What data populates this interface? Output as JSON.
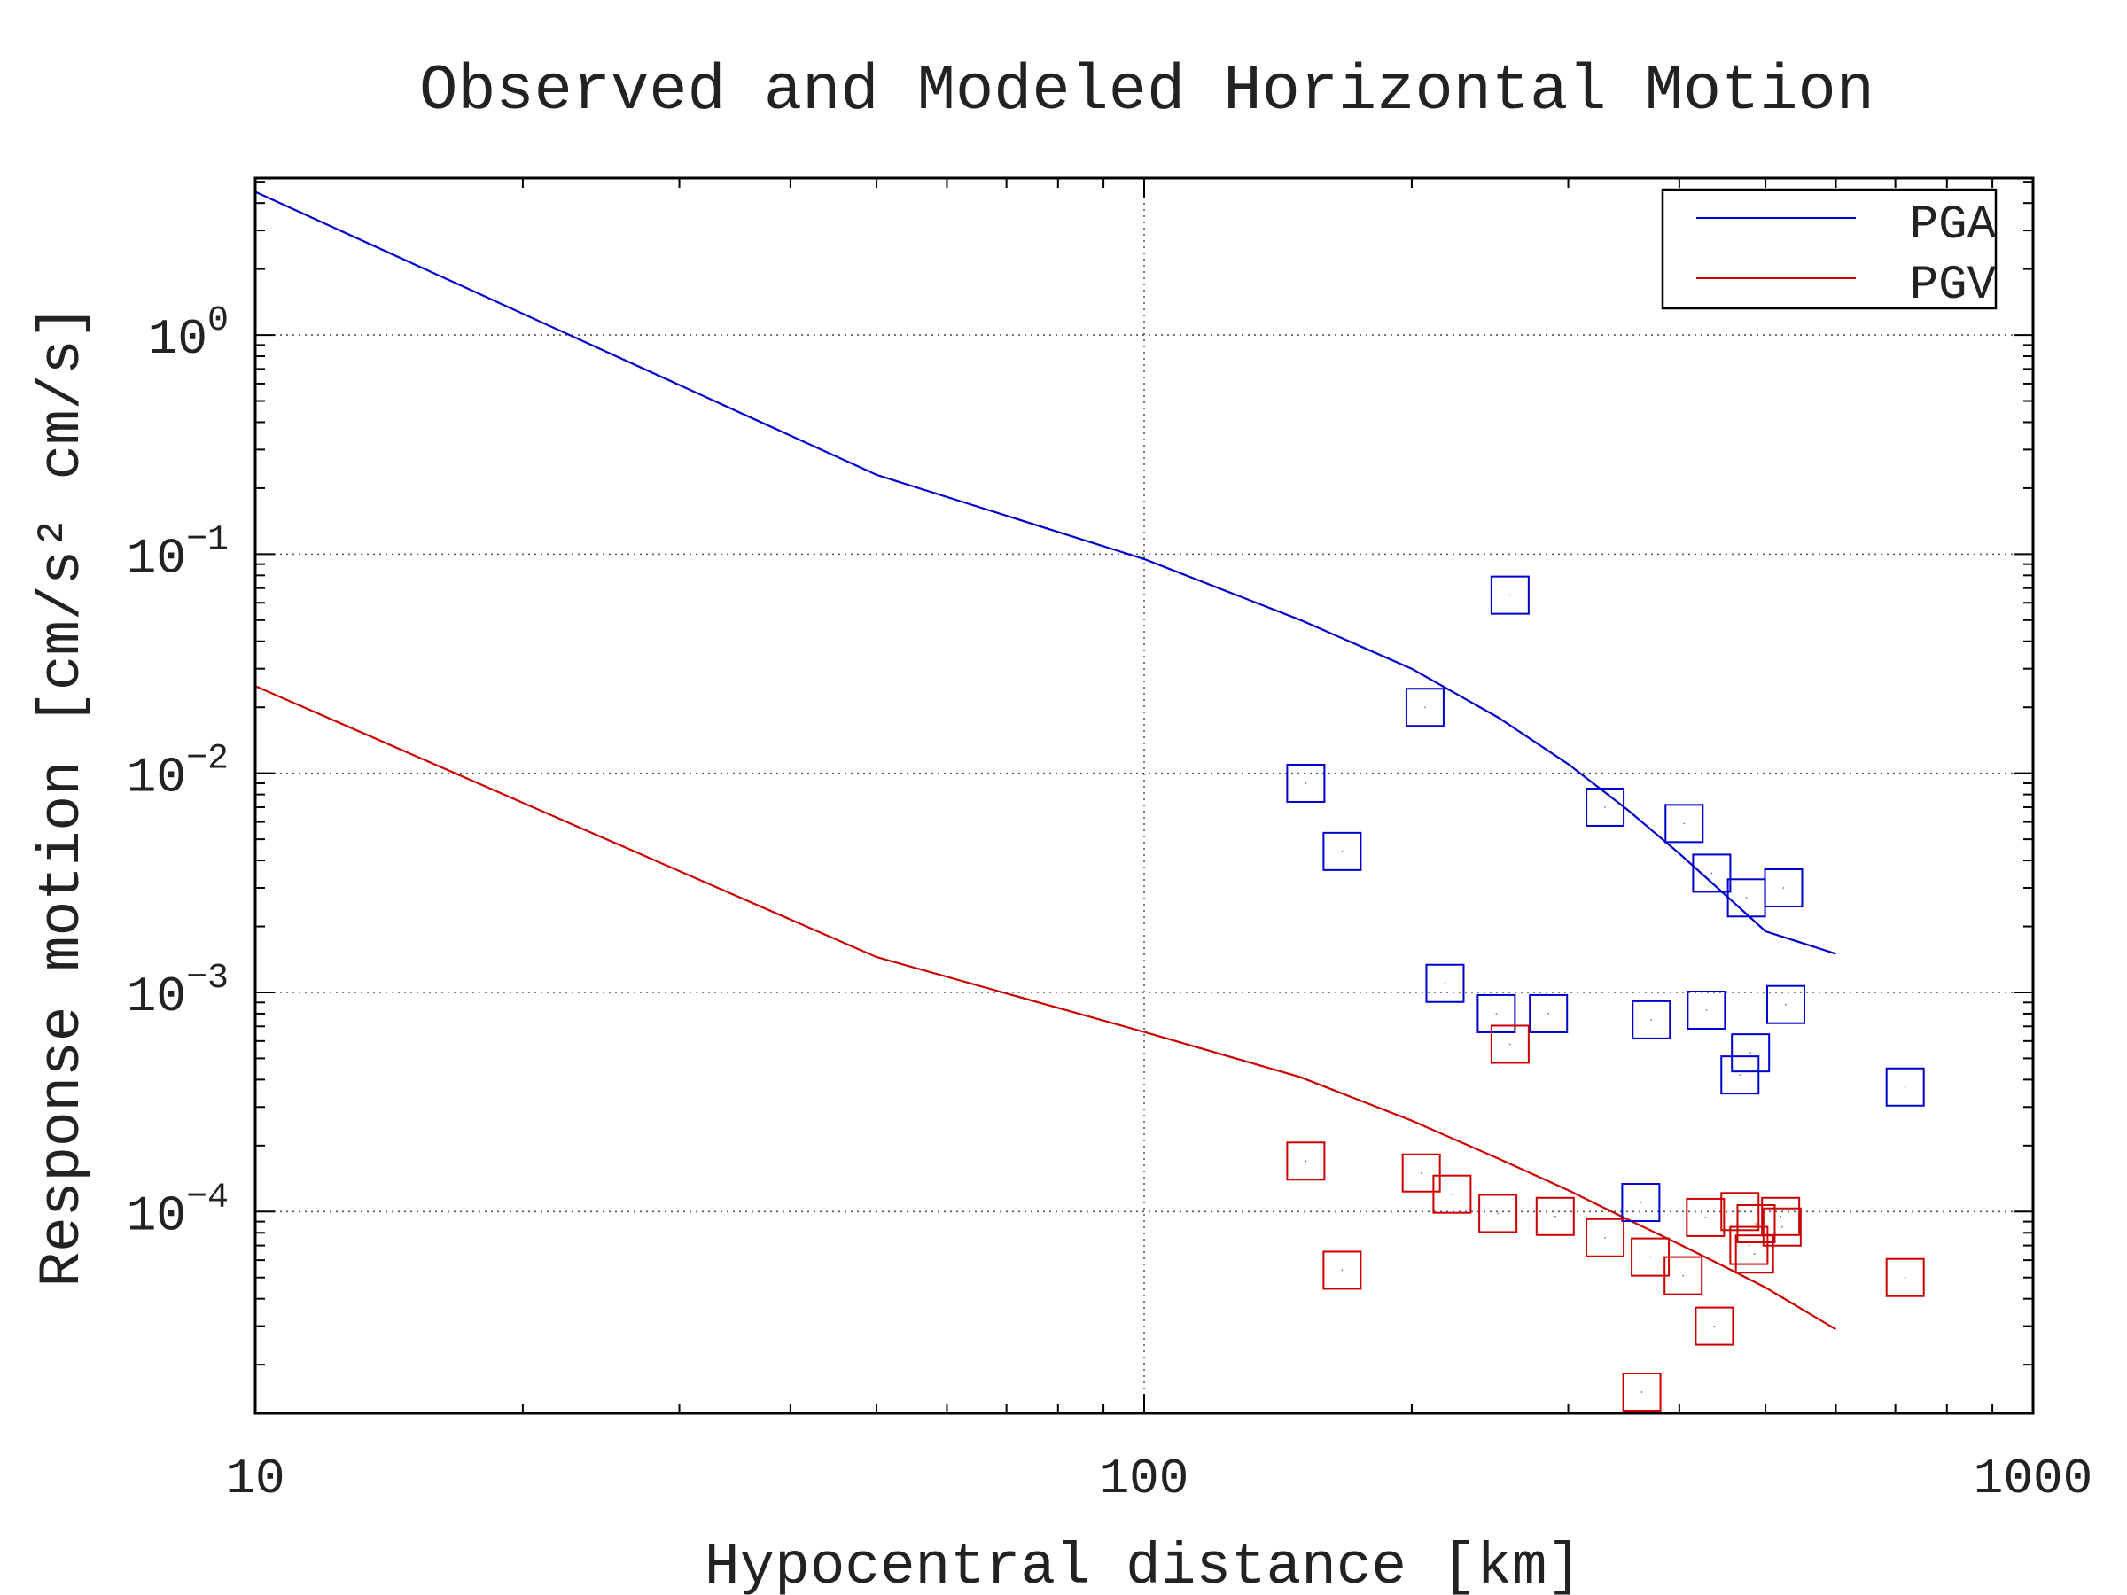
{
  "chart_data": {
    "type": "scatter",
    "title": "Observed and Modeled Horizontal Motion",
    "xlabel": "Hypocentral distance [km]",
    "ylabel": "Response motion [cm/s² cm/s]",
    "xscale": "log",
    "yscale": "log",
    "xlim": [
      10,
      1000
    ],
    "ylim": [
      1.2e-05,
      5.2
    ],
    "grid": true,
    "legend_position": "top-right",
    "x_tick_labels": [
      "10",
      "100",
      "1000"
    ],
    "y_tick_exponents": [
      "0",
      "−1",
      "−2",
      "−3",
      "−4"
    ],
    "series": [
      {
        "name": "PGA",
        "color": "#0000cc",
        "line": [
          [
            10,
            4.5
          ],
          [
            50,
            0.23
          ],
          [
            100,
            0.095
          ],
          [
            150,
            0.05
          ],
          [
            200,
            0.03
          ],
          [
            250,
            0.018
          ],
          [
            300,
            0.011
          ],
          [
            350,
            0.0068
          ],
          [
            400,
            0.0043
          ],
          [
            450,
            0.0028
          ],
          [
            500,
            0.0019
          ],
          [
            600,
            0.0015
          ]
        ],
        "points": [
          [
            258,
            0.065
          ],
          [
            207,
            0.02
          ],
          [
            152,
            0.009
          ],
          [
            167,
            0.0044
          ],
          [
            330,
            0.007
          ],
          [
            405,
            0.0059
          ],
          [
            435,
            0.0035
          ],
          [
            476,
            0.0027
          ],
          [
            524,
            0.003
          ],
          [
            218,
            0.0011
          ],
          [
            249,
            0.0008
          ],
          [
            285,
            0.0008
          ],
          [
            372,
            0.00075
          ],
          [
            429,
            0.00083
          ],
          [
            527,
            0.00088
          ],
          [
            481,
            0.00053
          ],
          [
            468,
            0.00042
          ],
          [
            718,
            0.00037
          ],
          [
            362,
            0.00011
          ]
        ]
      },
      {
        "name": "PGV",
        "color": "#cc0000",
        "line": [
          [
            10,
            0.025
          ],
          [
            50,
            0.00145
          ],
          [
            100,
            0.00066
          ],
          [
            150,
            0.00041
          ],
          [
            200,
            0.00026
          ],
          [
            250,
            0.000175
          ],
          [
            300,
            0.000125
          ],
          [
            350,
            9.2e-05
          ],
          [
            400,
            7.1e-05
          ],
          [
            450,
            5.6e-05
          ],
          [
            500,
            4.5e-05
          ],
          [
            600,
            2.9e-05
          ]
        ],
        "points": [
          [
            258,
            0.00058
          ],
          [
            152,
            0.00017
          ],
          [
            205,
            0.00015
          ],
          [
            222,
            0.00012
          ],
          [
            250,
            9.8e-05
          ],
          [
            290,
            9.5e-05
          ],
          [
            330,
            7.6e-05
          ],
          [
            371,
            6.2e-05
          ],
          [
            404,
            5.1e-05
          ],
          [
            438,
            3e-05
          ],
          [
            363,
            1.5e-05
          ],
          [
            428,
            9.4e-05
          ],
          [
            468,
            0.0001
          ],
          [
            488,
            8.8e-05
          ],
          [
            520,
            9.5e-05
          ],
          [
            479,
            7e-05
          ],
          [
            486,
            6.4e-05
          ],
          [
            522,
            8.5e-05
          ],
          [
            167,
            5.4e-05
          ],
          [
            718,
            5e-05
          ]
        ]
      }
    ]
  }
}
